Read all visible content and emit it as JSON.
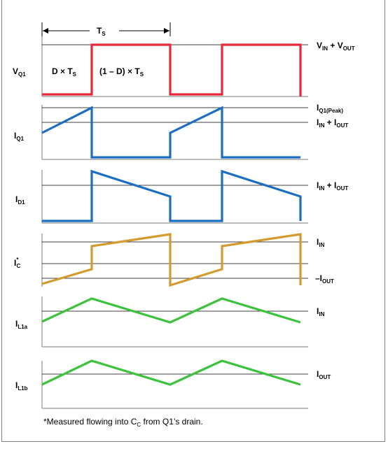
{
  "colors": {
    "vq1": "#e8283a",
    "current": "#1b6ec2",
    "cap": "#d39a2c",
    "inductor": "#3cc23c",
    "axis": "#7a7a7a",
    "frame": "#808080"
  },
  "period": {
    "label": "T",
    "sub": "S"
  },
  "panels": {
    "vq1": {
      "name": "V",
      "sub": "Q1",
      "on_interval": {
        "a": "D × T",
        "b": "S"
      },
      "off_interval": {
        "a": "(1 – D) × T",
        "b": "S"
      },
      "right_label": {
        "p1": "V",
        "s1": "IN",
        "p2": " + V",
        "s2": "OUT"
      }
    },
    "iq1": {
      "name": "I",
      "sub": "Q1",
      "peak_label": {
        "p1": "I",
        "s1": "Q1(Peak)"
      },
      "mid_label": {
        "p1": "I",
        "s1": "IN",
        "p2": " + I",
        "s2": "OUT"
      }
    },
    "id1": {
      "name": "I",
      "sub": "D1",
      "right_label": {
        "p1": "I",
        "s1": "IN",
        "p2": " + I",
        "s2": "OUT"
      }
    },
    "icc": {
      "name": "I",
      "star": "*",
      "sub": "C",
      "upper_label": {
        "p1": "I",
        "s1": "IN"
      },
      "lower_label": {
        "p1": "–I",
        "s1": "OUT"
      }
    },
    "il1a": {
      "name": "I",
      "sub": "L1a",
      "right_label": {
        "p1": "I",
        "s1": "IN"
      }
    },
    "il1b": {
      "name": "I",
      "sub": "L1b",
      "right_label": {
        "p1": "I",
        "s1": "OUT"
      }
    }
  },
  "footnote": {
    "t1": "*Measured flowing into C",
    "sub": "C",
    "t2": " from Q1’s drain."
  }
}
